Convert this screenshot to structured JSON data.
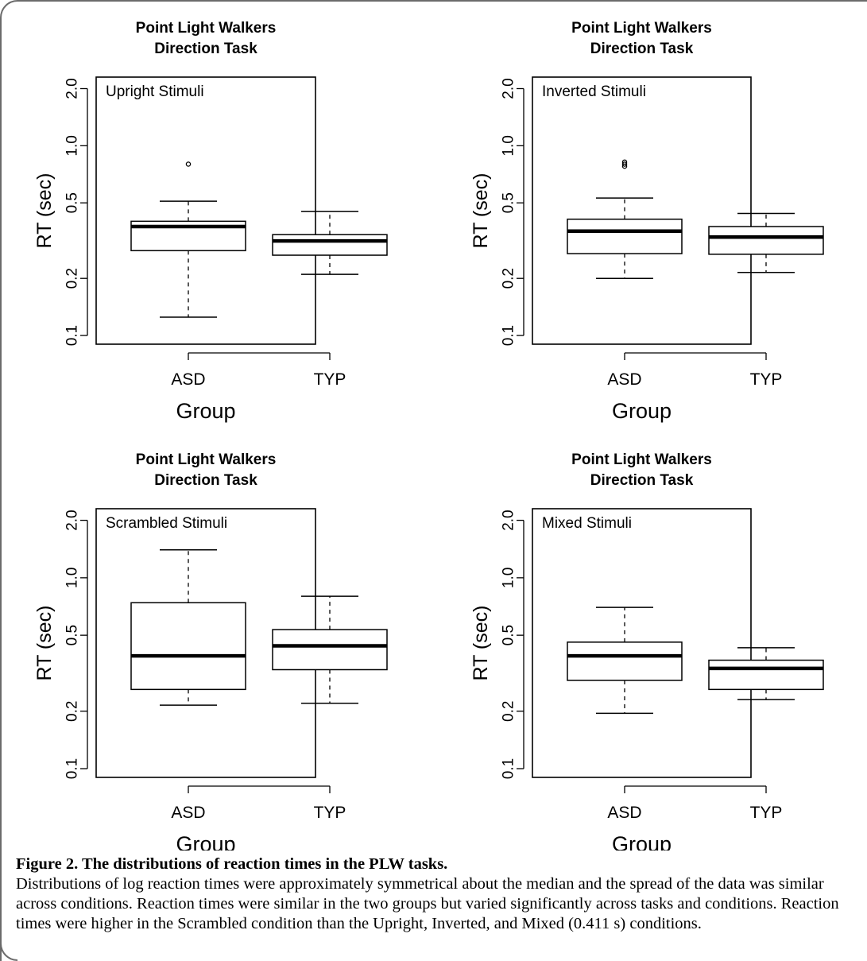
{
  "chart_data": [
    {
      "type": "box",
      "title_lines": [
        "Point Light Walkers",
        "Direction Task"
      ],
      "inset_label": "Upright Stimuli",
      "ylabel": "RT (sec)",
      "xlabel": "Group",
      "yscale": "log",
      "ylim": [
        0.09,
        2.3
      ],
      "yticks": [
        "0.1",
        "0.2",
        "0.5",
        "1.0",
        "2.0"
      ],
      "categories": [
        "ASD",
        "TYP"
      ],
      "boxes": [
        {
          "group": "ASD",
          "whisker_low": 0.125,
          "q1": 0.28,
          "median": 0.375,
          "q3": 0.4,
          "whisker_high": 0.51,
          "outliers": [
            0.8
          ]
        },
        {
          "group": "TYP",
          "whisker_low": 0.21,
          "q1": 0.265,
          "median": 0.315,
          "q3": 0.34,
          "whisker_high": 0.45,
          "outliers": []
        }
      ]
    },
    {
      "type": "box",
      "title_lines": [
        "Point Light Walkers",
        "Direction Task"
      ],
      "inset_label": "Inverted Stimuli",
      "ylabel": "RT (sec)",
      "xlabel": "Group",
      "yscale": "log",
      "ylim": [
        0.09,
        2.3
      ],
      "yticks": [
        "0.1",
        "0.2",
        "0.5",
        "1.0",
        "2.0"
      ],
      "categories": [
        "ASD",
        "TYP"
      ],
      "boxes": [
        {
          "group": "ASD",
          "whisker_low": 0.2,
          "q1": 0.27,
          "median": 0.355,
          "q3": 0.41,
          "whisker_high": 0.53,
          "outliers": [
            0.78,
            0.8,
            0.82
          ]
        },
        {
          "group": "TYP",
          "whisker_low": 0.215,
          "q1": 0.268,
          "median": 0.33,
          "q3": 0.375,
          "whisker_high": 0.44,
          "outliers": []
        }
      ]
    },
    {
      "type": "box",
      "title_lines": [
        "Point Light Walkers",
        "Direction Task"
      ],
      "inset_label": "Scrambled Stimuli",
      "ylabel": "RT (sec)",
      "xlabel": "Group",
      "yscale": "log",
      "ylim": [
        0.09,
        2.3
      ],
      "yticks": [
        "0.1",
        "0.2",
        "0.5",
        "1.0",
        "2.0"
      ],
      "categories": [
        "ASD",
        "TYP"
      ],
      "boxes": [
        {
          "group": "ASD",
          "whisker_low": 0.215,
          "q1": 0.26,
          "median": 0.39,
          "q3": 0.74,
          "whisker_high": 1.4,
          "outliers": []
        },
        {
          "group": "TYP",
          "whisker_low": 0.22,
          "q1": 0.33,
          "median": 0.44,
          "q3": 0.535,
          "whisker_high": 0.8,
          "outliers": []
        }
      ]
    },
    {
      "type": "box",
      "title_lines": [
        "Point Light Walkers",
        "Direction Task"
      ],
      "inset_label": "Mixed Stimuli",
      "ylabel": "RT (sec)",
      "xlabel": "Group",
      "yscale": "log",
      "ylim": [
        0.09,
        2.3
      ],
      "yticks": [
        "0.1",
        "0.2",
        "0.5",
        "1.0",
        "2.0"
      ],
      "categories": [
        "ASD",
        "TYP"
      ],
      "boxes": [
        {
          "group": "ASD",
          "whisker_low": 0.195,
          "q1": 0.29,
          "median": 0.39,
          "q3": 0.46,
          "whisker_high": 0.7,
          "outliers": []
        },
        {
          "group": "TYP",
          "whisker_low": 0.23,
          "q1": 0.26,
          "median": 0.335,
          "q3": 0.37,
          "whisker_high": 0.43,
          "outliers": []
        }
      ]
    }
  ],
  "caption": {
    "title": "Figure 2.  The distributions of reaction times in the PLW tasks.",
    "body": "Distributions of log reaction times were approximately symmetrical about the median and the spread of the data was similar across conditions.  Reaction times were similar in the two groups but varied significantly across tasks and conditions. Reaction times were higher in the Scrambled condition than the Upright, Inverted, and Mixed (0.411 s) conditions."
  }
}
